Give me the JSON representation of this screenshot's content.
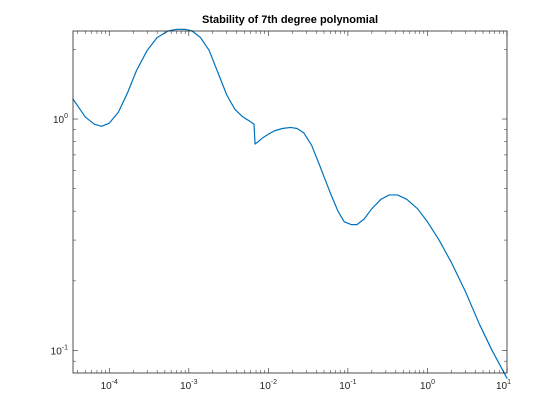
{
  "chart_data": {
    "type": "line",
    "title": "Stability of 7th degree polynomial",
    "xlabel": "",
    "ylabel": "",
    "x_scale": "log",
    "y_scale": "log",
    "xlim": [
      3.5e-05,
      10
    ],
    "ylim": [
      0.08,
      2.4
    ],
    "grid": false,
    "x_ticks": [
      {
        "value": 0.0001,
        "base": "10",
        "exp": "-4"
      },
      {
        "value": 0.001,
        "base": "10",
        "exp": "-3"
      },
      {
        "value": 0.01,
        "base": "10",
        "exp": "-2"
      },
      {
        "value": 0.1,
        "base": "10",
        "exp": "-1"
      },
      {
        "value": 1,
        "base": "10",
        "exp": "0"
      },
      {
        "value": 10,
        "base": "10",
        "exp": "1"
      }
    ],
    "y_ticks": [
      {
        "value": 0.1,
        "base": "10",
        "exp": "-1"
      },
      {
        "value": 1,
        "base": "10",
        "exp": "0"
      }
    ],
    "series": [
      {
        "color": "#0072BD",
        "x": [
          3.5e-05,
          5e-05,
          6.5e-05,
          8e-05,
          0.0001,
          0.00013,
          0.00017,
          0.00022,
          0.0003,
          0.0004,
          0.00055,
          0.0007,
          0.0009,
          0.0011,
          0.0014,
          0.0018,
          0.0023,
          0.003,
          0.0038,
          0.0048,
          0.0058,
          0.0063,
          0.0066,
          0.0068,
          0.0075,
          0.0085,
          0.01,
          0.012,
          0.015,
          0.019,
          0.023,
          0.028,
          0.035,
          0.045,
          0.06,
          0.075,
          0.09,
          0.11,
          0.13,
          0.16,
          0.2,
          0.26,
          0.33,
          0.42,
          0.55,
          0.75,
          1.0,
          1.4,
          2.0,
          3.0,
          4.5,
          6.5,
          10
        ],
        "y": [
          1.22,
          1.02,
          0.95,
          0.93,
          0.96,
          1.07,
          1.3,
          1.62,
          1.98,
          2.25,
          2.4,
          2.44,
          2.44,
          2.4,
          2.25,
          1.98,
          1.6,
          1.27,
          1.1,
          1.02,
          0.98,
          0.96,
          0.95,
          0.78,
          0.8,
          0.83,
          0.86,
          0.89,
          0.91,
          0.92,
          0.91,
          0.87,
          0.77,
          0.62,
          0.48,
          0.4,
          0.36,
          0.35,
          0.35,
          0.37,
          0.41,
          0.45,
          0.47,
          0.47,
          0.45,
          0.41,
          0.36,
          0.3,
          0.24,
          0.18,
          0.13,
          0.1,
          0.076
        ]
      }
    ]
  }
}
